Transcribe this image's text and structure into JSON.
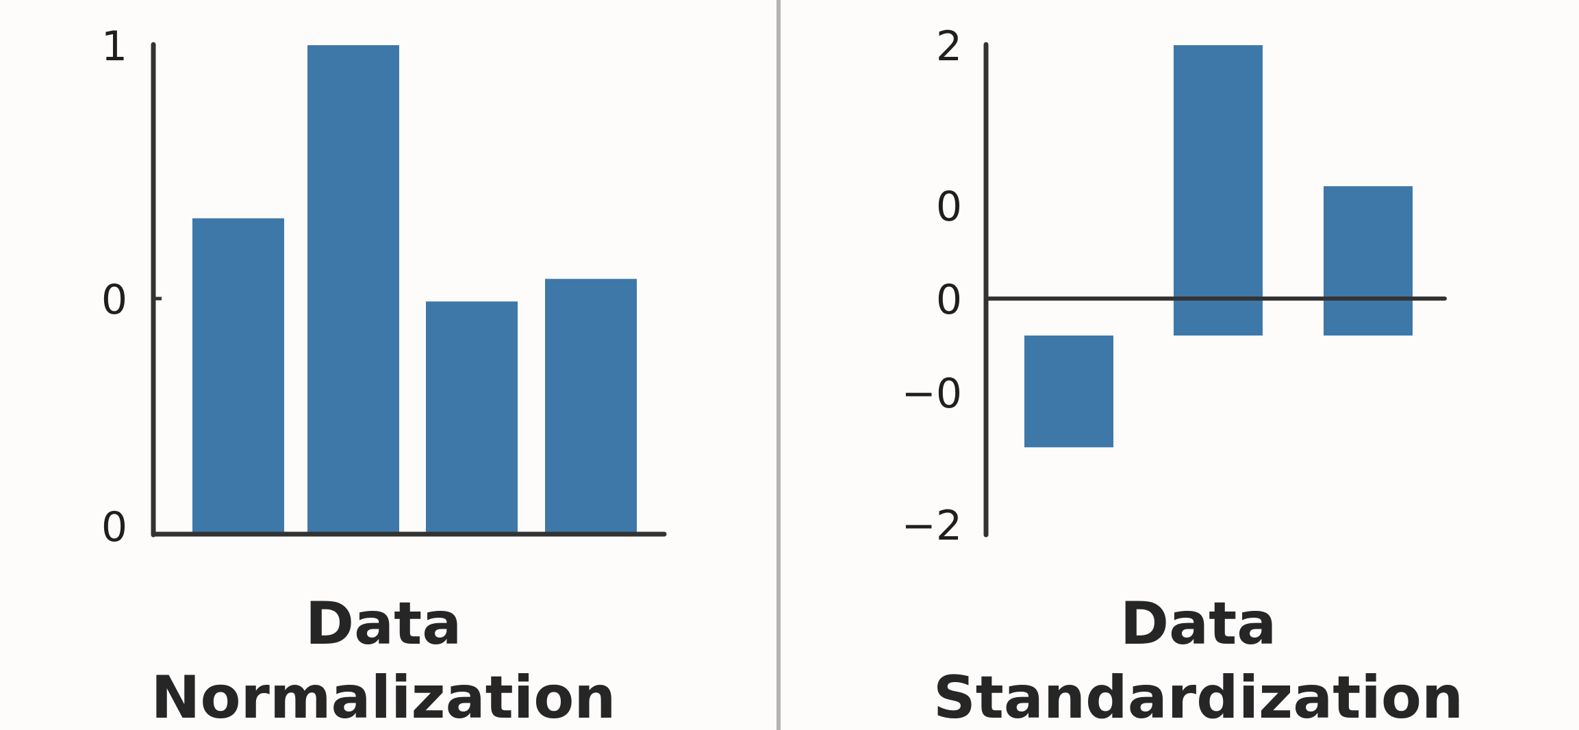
{
  "chart_data": [
    {
      "type": "bar",
      "title_lines": [
        "Data",
        "Normalization"
      ],
      "values": [
        0.645,
        1.0,
        0.4744,
        0.5207
      ],
      "y_tick_labels": [
        "1",
        "0",
        "0"
      ],
      "ylim": [
        0,
        1
      ],
      "grid": false,
      "bar_color": "#3e78a8"
    },
    {
      "type": "bar",
      "title_lines": [
        "Data",
        "Standardization"
      ],
      "values": [
        -1.34,
        3.48,
        1.79
      ],
      "y_tick_labels": [
        "2",
        "0",
        "0",
        "−0",
        "−2"
      ],
      "ylim": [
        -2.43,
        3.48
      ],
      "grid": false,
      "bar_color": "#3e78a8"
    }
  ],
  "colors": {
    "background": "#fdfcfb",
    "axis": "#333333",
    "divider": "#b3b3b3",
    "text": "#262626"
  }
}
